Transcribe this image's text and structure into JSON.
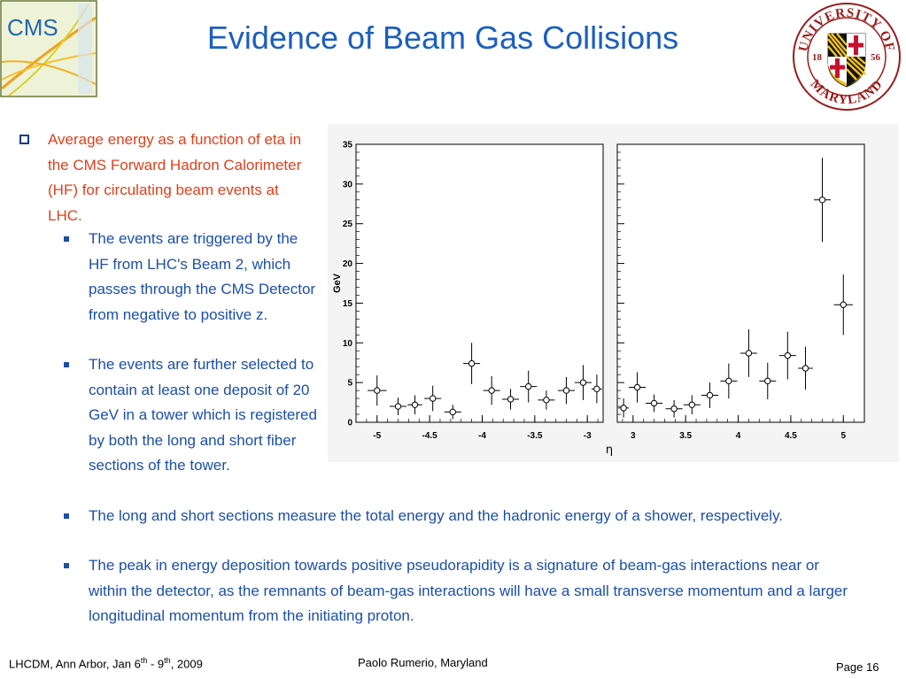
{
  "slide": {
    "title": "Evidence of Beam Gas Collisions",
    "logos": {
      "left": "CMS",
      "right_top": "UNIVERSITY OF",
      "right_bottom": "MARYLAND",
      "year_left": "18",
      "year_right": "56"
    }
  },
  "bullets": {
    "main": "Average energy as a function of eta in the CMS Forward Hadron Calorimeter (HF) for circulating beam events at LHC.",
    "sub1": "The events are triggered by the HF from LHC's Beam 2, which passes through the CMS Detector from negative to positive z.",
    "sub2": "The events are further selected to contain at least one deposit of 20 GeV in a tower which is registered by both the long and short fiber sections of the tower.",
    "sub3": "The long and short sections measure the total energy and the hadronic energy of a shower, respectively.",
    "sub4": "The peak in energy deposition towards positive pseudorapidity is a signature of beam-gas interactions near or within the detector, as the remnants of beam-gas interactions will have a small transverse momentum and a larger longitudinal momentum from the initiating proton."
  },
  "footer": {
    "left_prefix": "LHCDM, Ann Arbor, Jan 6",
    "left_sup1": "th",
    "left_mid": " - 9",
    "left_sup2": "th",
    "left_suffix": ", 2009",
    "center": "Paolo Rumerio,  Maryland",
    "right": "Page 16"
  },
  "chart_data": {
    "type": "scatter",
    "xlabel": "η",
    "ylabel": "GeV",
    "ylim": [
      0,
      35
    ],
    "yticks": [
      "0",
      "5",
      "10",
      "15",
      "20",
      "25",
      "30",
      "35"
    ],
    "panels": [
      {
        "xlim": [
          -5.2,
          -2.85
        ],
        "xticks": [
          "-5",
          "-4.5",
          "-4",
          "-3.5",
          "-3"
        ],
        "xtick_values": [
          -5,
          -4.5,
          -4,
          -3.5,
          -3
        ],
        "points": [
          {
            "x": -5.0,
            "y": 4.0,
            "xerr": 0.09,
            "yerr": 1.9
          },
          {
            "x": -4.8,
            "y": 2.0,
            "xerr": 0.08,
            "yerr": 1.1
          },
          {
            "x": -4.64,
            "y": 2.2,
            "xerr": 0.07,
            "yerr": 1.2
          },
          {
            "x": -4.47,
            "y": 3.0,
            "xerr": 0.08,
            "yerr": 1.6
          },
          {
            "x": -4.28,
            "y": 1.3,
            "xerr": 0.08,
            "yerr": 0.9
          },
          {
            "x": -4.1,
            "y": 7.4,
            "xerr": 0.08,
            "yerr": 2.6
          },
          {
            "x": -3.91,
            "y": 4.0,
            "xerr": 0.08,
            "yerr": 1.8
          },
          {
            "x": -3.73,
            "y": 2.9,
            "xerr": 0.08,
            "yerr": 1.3
          },
          {
            "x": -3.56,
            "y": 4.5,
            "xerr": 0.08,
            "yerr": 2.0
          },
          {
            "x": -3.39,
            "y": 2.8,
            "xerr": 0.08,
            "yerr": 1.2
          },
          {
            "x": -3.2,
            "y": 4.0,
            "xerr": 0.08,
            "yerr": 1.7
          },
          {
            "x": -3.04,
            "y": 5.0,
            "xerr": 0.08,
            "yerr": 2.2
          },
          {
            "x": -2.91,
            "y": 4.2,
            "xerr": 0.05,
            "yerr": 1.8
          }
        ]
      },
      {
        "xlim": [
          2.85,
          5.2
        ],
        "xticks": [
          "3",
          "3.5",
          "4",
          "4.5",
          "5"
        ],
        "xtick_values": [
          3,
          3.5,
          4,
          4.5,
          5
        ],
        "points": [
          {
            "x": 2.91,
            "y": 1.8,
            "xerr": 0.05,
            "yerr": 1.2
          },
          {
            "x": 3.04,
            "y": 4.4,
            "xerr": 0.08,
            "yerr": 1.9
          },
          {
            "x": 3.2,
            "y": 2.4,
            "xerr": 0.08,
            "yerr": 1.1
          },
          {
            "x": 3.39,
            "y": 1.7,
            "xerr": 0.08,
            "yerr": 1.1
          },
          {
            "x": 3.56,
            "y": 2.2,
            "xerr": 0.08,
            "yerr": 1.2
          },
          {
            "x": 3.73,
            "y": 3.4,
            "xerr": 0.08,
            "yerr": 1.6
          },
          {
            "x": 3.91,
            "y": 5.2,
            "xerr": 0.08,
            "yerr": 2.2
          },
          {
            "x": 4.1,
            "y": 8.7,
            "xerr": 0.08,
            "yerr": 3.0
          },
          {
            "x": 4.28,
            "y": 5.2,
            "xerr": 0.08,
            "yerr": 2.3
          },
          {
            "x": 4.47,
            "y": 8.4,
            "xerr": 0.08,
            "yerr": 3.0
          },
          {
            "x": 4.64,
            "y": 6.8,
            "xerr": 0.07,
            "yerr": 2.7
          },
          {
            "x": 4.8,
            "y": 28.0,
            "xerr": 0.08,
            "yerr": 5.3
          },
          {
            "x": 5.0,
            "y": 14.8,
            "xerr": 0.09,
            "yerr": 3.8
          }
        ]
      }
    ]
  }
}
